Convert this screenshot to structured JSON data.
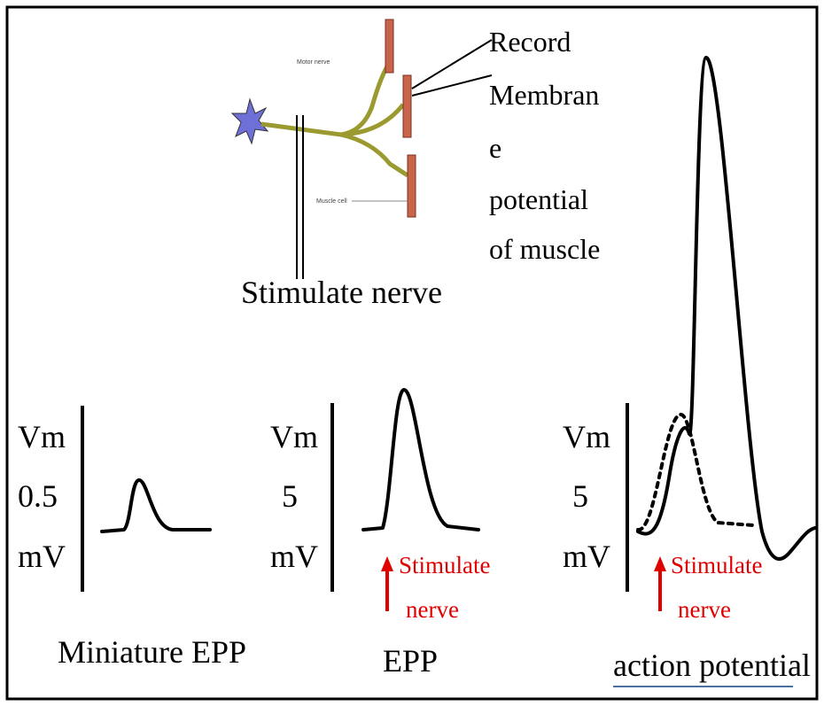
{
  "diagram": {
    "record_label": [
      "Record",
      "Membran",
      "e",
      "potential",
      "of muscle"
    ],
    "motor_nerve_label": "Motor nerve",
    "muscle_cell_label": "Muscle cell",
    "stimulate_label": "Stimulate nerve"
  },
  "panels": [
    {
      "scale": [
        "Vm",
        "0.5",
        "mV"
      ],
      "caption": "Miniature EPP"
    },
    {
      "scale": [
        "Vm",
        "5",
        "mV"
      ],
      "stimulus": [
        "Stimulate",
        "nerve"
      ],
      "caption": "EPP"
    },
    {
      "scale": [
        "Vm",
        "5",
        "mV"
      ],
      "stimulus": [
        "Stimulate",
        "nerve"
      ],
      "caption": "action potential"
    }
  ]
}
